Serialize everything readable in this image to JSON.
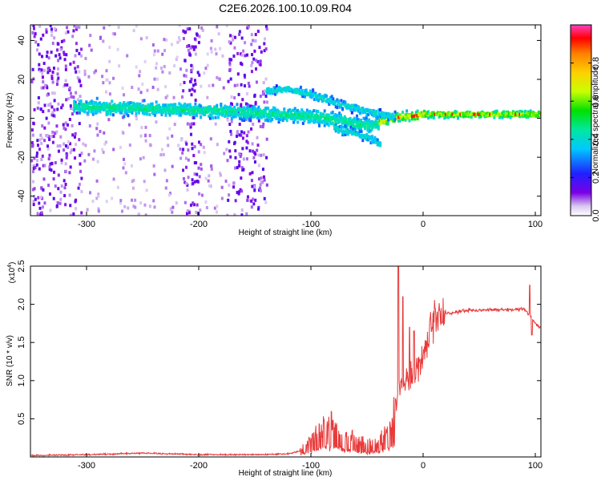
{
  "title": "C2E6.2026.100.10.09.R04",
  "chart_data": [
    {
      "type": "heatmap",
      "xlabel": "Height of straight line (km)",
      "ylabel": "Frequency (Hz)",
      "xlim": [
        -350,
        105
      ],
      "ylim": [
        -50,
        48
      ],
      "xticks": [
        -300,
        -200,
        -100,
        0,
        100
      ],
      "yticks": [
        -40,
        -20,
        0,
        20,
        40
      ],
      "colorbar": {
        "label": "Normalized spectral amplitude",
        "range": [
          0,
          1
        ],
        "ticks": [
          0.0,
          0.2,
          0.4,
          0.6,
          0.8
        ],
        "tick_labels": [
          "0.0",
          "0.2",
          "0.4",
          "0.6",
          "0.8"
        ],
        "colors": [
          "#ffffff",
          "#d9c8f0",
          "#7a00e6",
          "#2020ff",
          "#00c8ff",
          "#00e8a0",
          "#00e000",
          "#c8ff00",
          "#ffd000",
          "#ff8000",
          "#ff0000",
          "#ff40c0"
        ]
      },
      "bands": [
        {
          "name": "main",
          "points": [
            [
              -312,
              6
            ],
            [
              -250,
              5
            ],
            [
              -200,
              4
            ],
            [
              -150,
              3
            ],
            [
              -130,
              2
            ],
            [
              -100,
              1
            ],
            [
              -75,
              -1
            ],
            [
              -60,
              -3
            ],
            [
              -45,
              -4
            ],
            [
              -35,
              -1
            ],
            [
              -20,
              1
            ],
            [
              -10,
              1
            ],
            [
              0,
              2
            ],
            [
              20,
              2
            ],
            [
              60,
              2
            ],
            [
              105,
              2
            ]
          ]
        },
        {
          "name": "upper",
          "points": [
            [
              -140,
              14
            ],
            [
              -120,
              15
            ],
            [
              -100,
              12
            ],
            [
              -80,
              8
            ],
            [
              -60,
              5
            ],
            [
              -40,
              2
            ],
            [
              -25,
              1
            ]
          ]
        },
        {
          "name": "lower",
          "points": [
            [
              -80,
              -5
            ],
            [
              -60,
              -8
            ],
            [
              -45,
              -11
            ],
            [
              -38,
              -14
            ]
          ]
        }
      ]
    },
    {
      "type": "line",
      "series_name": "SNR",
      "xlabel": "Height of straight line (km)",
      "ylabel": "SNR (10 * v/v)",
      "exponent_label": "(x10",
      "exponent_power": "4",
      "exponent_close": ")",
      "scale": 10000,
      "xlim": [
        -350,
        105
      ],
      "ylim": [
        0,
        25000
      ],
      "xticks": [
        -300,
        -200,
        -100,
        0,
        100
      ],
      "yticks": [
        0.5,
        1.0,
        1.5,
        2.0,
        2.5
      ],
      "ytick_labels": [
        "0.5",
        "1.0",
        "1.5",
        "2.0",
        "2.5"
      ],
      "color": "#e83a3a",
      "envelope": {
        "x": [
          -350,
          -300,
          -250,
          -200,
          -150,
          -120,
          -110,
          -100,
          -90,
          -80,
          -70,
          -60,
          -50,
          -40,
          -35,
          -30,
          -25,
          -20,
          -15,
          -10,
          -5,
          0,
          5,
          10,
          15,
          20,
          30,
          40,
          50,
          60,
          70,
          80,
          90,
          95,
          100,
          105
        ],
        "y": [
          200,
          300,
          500,
          300,
          300,
          400,
          800,
          2500,
          4000,
          4500,
          3000,
          2500,
          2000,
          2000,
          3000,
          4000,
          7000,
          9000,
          10000,
          10500,
          11500,
          13500,
          16000,
          18000,
          18500,
          18800,
          19000,
          19200,
          19200,
          19300,
          19300,
          19300,
          19400,
          18500,
          17500,
          17000
        ]
      },
      "spikes": [
        [
          -22,
          25000
        ],
        [
          -18,
          21000
        ],
        [
          -12,
          17000
        ],
        [
          -8,
          16500
        ],
        [
          95,
          22500
        ],
        [
          97,
          16000
        ]
      ]
    }
  ]
}
